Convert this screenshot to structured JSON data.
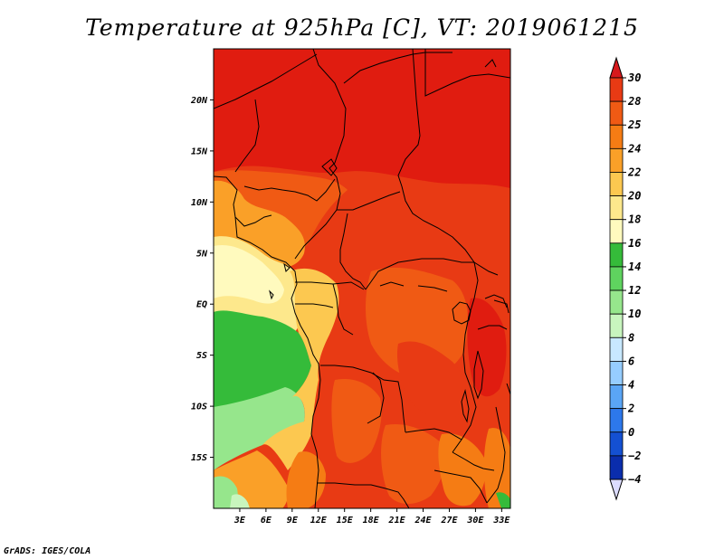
{
  "title": "Temperature at 925hPa [C], VT: 2019061215",
  "footer": "GrADS: IGES/COLA",
  "map": {
    "lon_range": [
      0,
      34
    ],
    "lat_range": [
      -20,
      25
    ],
    "lat_ticks": [
      {
        "value": 20,
        "label": "20N"
      },
      {
        "value": 15,
        "label": "15N"
      },
      {
        "value": 10,
        "label": "10N"
      },
      {
        "value": 5,
        "label": "5N"
      },
      {
        "value": 0,
        "label": "EQ"
      },
      {
        "value": -5,
        "label": "5S"
      },
      {
        "value": -10,
        "label": "10S"
      },
      {
        "value": -15,
        "label": "15S"
      }
    ],
    "lon_ticks": [
      {
        "value": 3,
        "label": "3E"
      },
      {
        "value": 6,
        "label": "6E"
      },
      {
        "value": 9,
        "label": "9E"
      },
      {
        "value": 12,
        "label": "12E"
      },
      {
        "value": 15,
        "label": "15E"
      },
      {
        "value": 18,
        "label": "18E"
      },
      {
        "value": 21,
        "label": "21E"
      },
      {
        "value": 24,
        "label": "24E"
      },
      {
        "value": 27,
        "label": "27E"
      },
      {
        "value": 30,
        "label": "30E"
      },
      {
        "value": 33,
        "label": "33E"
      }
    ]
  },
  "colorbar": {
    "levels": [
      "30",
      "28",
      "25",
      "24",
      "22",
      "20",
      "18",
      "16",
      "14",
      "12",
      "10",
      "8",
      "6",
      "4",
      "2",
      "0",
      "−2",
      "−4"
    ],
    "colors": [
      "#d7191c",
      "#e83a14",
      "#f05a14",
      "#f57c14",
      "#faa028",
      "#fcc850",
      "#fde88c",
      "#fffabe",
      "#35bb3a",
      "#5fd35f",
      "#96e68c",
      "#c8f5be",
      "#c8e8ff",
      "#96cdff",
      "#5aa5f5",
      "#2d78eb",
      "#1450d2",
      "#0a2dac",
      "#000a78",
      "#dcdcff"
    ]
  }
}
